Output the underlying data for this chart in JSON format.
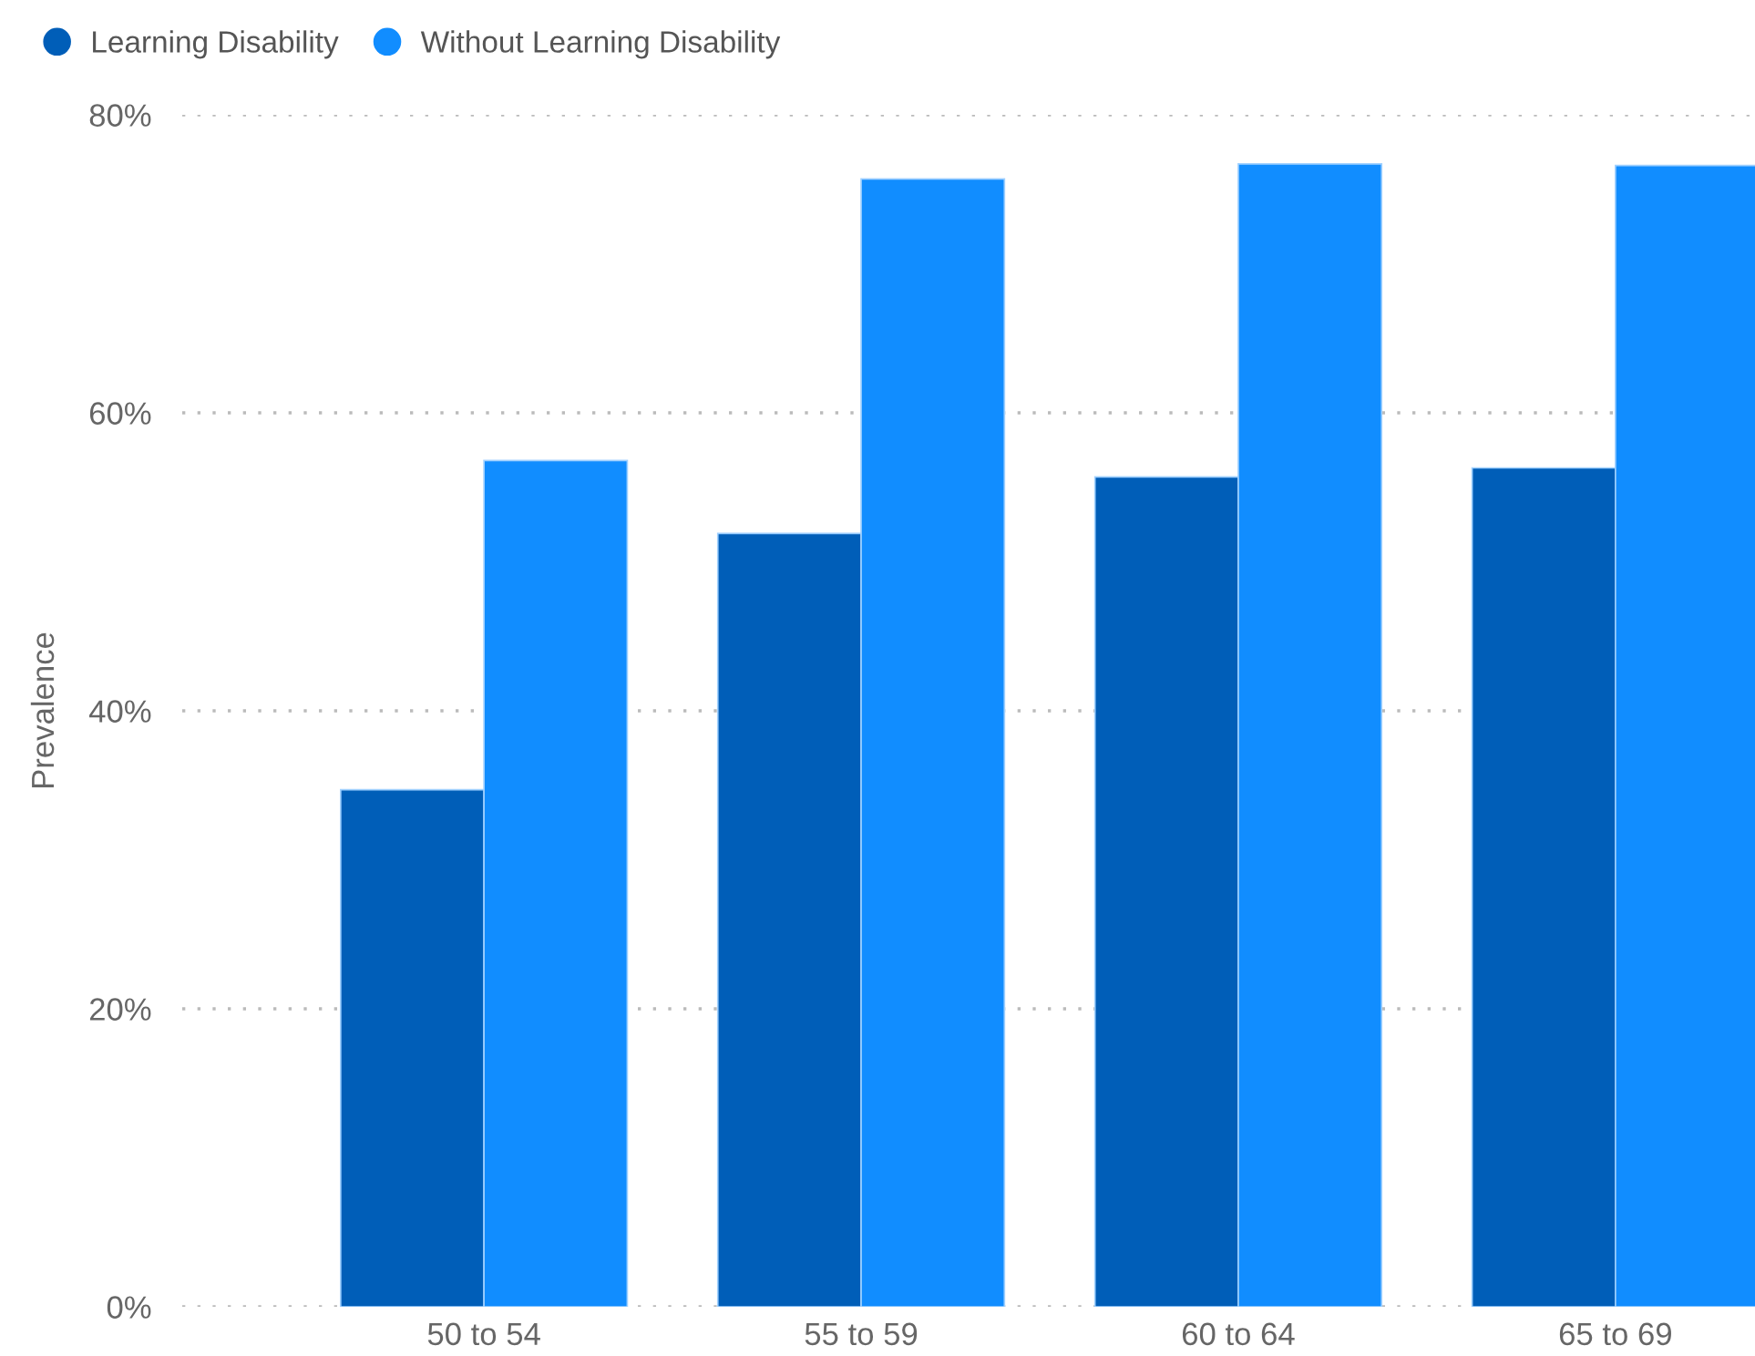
{
  "chart_data": {
    "type": "bar",
    "ylabel": "Prevalence",
    "categories": [
      "50 to 54",
      "55 to 59",
      "60 to 64",
      "65 to 69"
    ],
    "series": [
      {
        "name": "Learning Disability",
        "color": "#005eb8",
        "values": [
          34.7,
          51.9,
          55.7,
          56.3
        ]
      },
      {
        "name": "Without Learning Disability",
        "color": "#118dff",
        "values": [
          56.8,
          75.7,
          76.7,
          76.6
        ]
      }
    ],
    "ylim": [
      0,
      80
    ],
    "yticks": [
      {
        "value": 0,
        "label": "0%"
      },
      {
        "value": 20,
        "label": "20%"
      },
      {
        "value": 40,
        "label": "40%"
      },
      {
        "value": 60,
        "label": "60%"
      },
      {
        "value": 80,
        "label": "80%"
      }
    ],
    "grid": "y",
    "legend": "top left"
  }
}
